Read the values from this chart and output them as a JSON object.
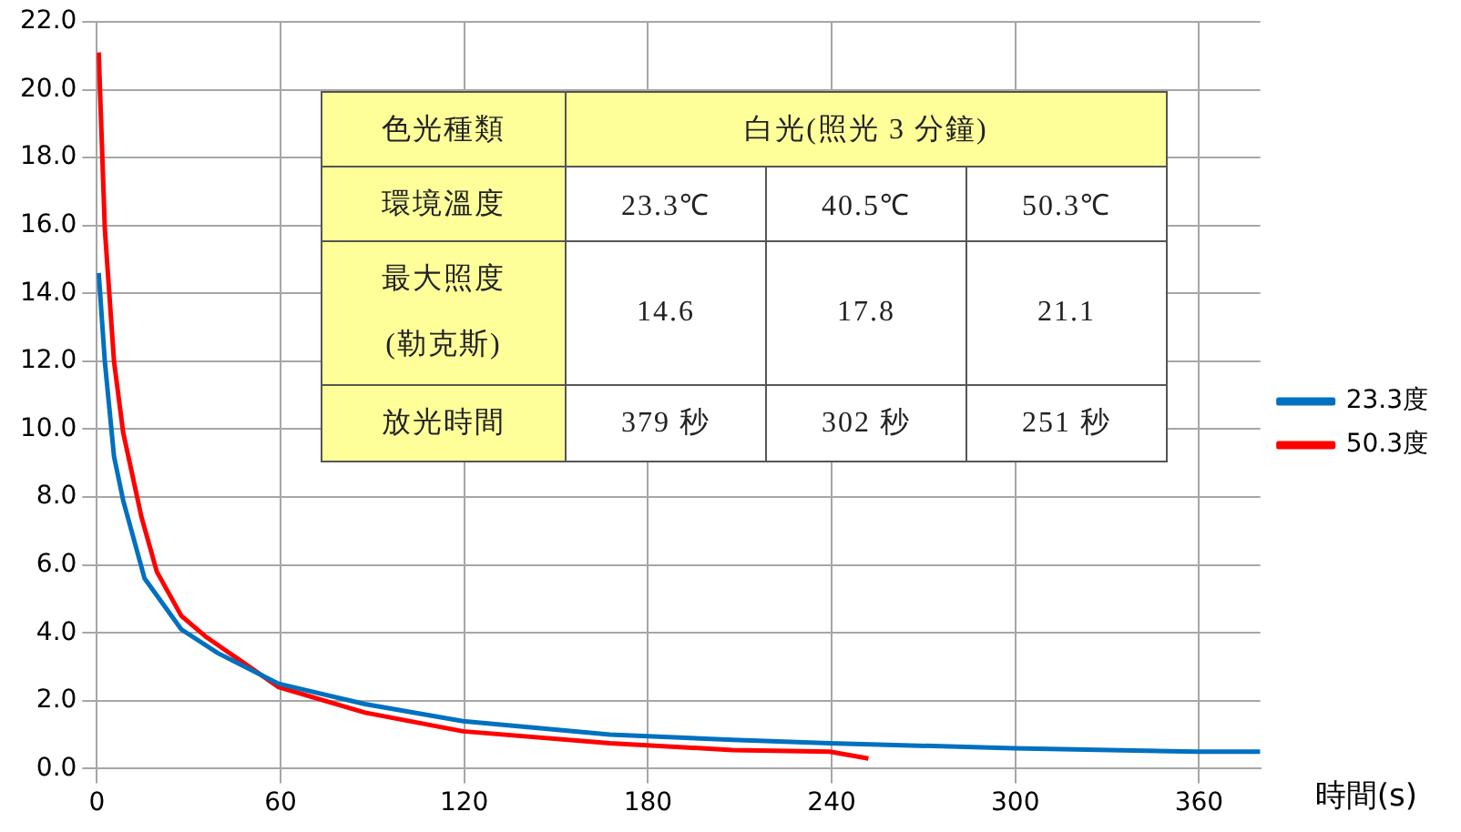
{
  "chart_data": {
    "type": "line",
    "xlabel": "時間(s)",
    "xlim": [
      0,
      380
    ],
    "xticks": [
      0,
      60,
      120,
      180,
      240,
      300,
      360
    ],
    "ylim": [
      0,
      22
    ],
    "yticks": [
      {
        "value": 0,
        "label": "0.0"
      },
      {
        "value": 2,
        "label": "2.0"
      },
      {
        "value": 4,
        "label": "4.0"
      },
      {
        "value": 6,
        "label": "6.0"
      },
      {
        "value": 8,
        "label": "8.0"
      },
      {
        "value": 10,
        "label": "10.0"
      },
      {
        "value": 12,
        "label": "12.0"
      },
      {
        "value": 14,
        "label": "14.0"
      },
      {
        "value": 16,
        "label": "16.0"
      },
      {
        "value": 18,
        "label": "18.0"
      },
      {
        "value": 20,
        "label": "20.0"
      },
      {
        "value": 22,
        "label": "22.0"
      }
    ],
    "grid": true,
    "legend": "right",
    "series": [
      {
        "name": "23.3度",
        "color": "#0070c0",
        "x": [
          0.6,
          2.6,
          5.6,
          8.6,
          15.6,
          27.6,
          39.6,
          59.4,
          87.6,
          119.6,
          167.6,
          207.6,
          239.4,
          299.4,
          359.4,
          380
        ],
        "values": [
          14.6,
          12.0,
          9.2,
          7.9,
          5.6,
          4.1,
          3.4,
          2.5,
          1.9,
          1.4,
          1.0,
          0.85,
          0.75,
          0.6,
          0.5,
          0.5
        ]
      },
      {
        "name": "50.3度",
        "color": "#ff0000",
        "x": [
          0.6,
          2.6,
          5.6,
          8.6,
          14.6,
          19.6,
          27.6,
          35.4,
          59.4,
          87.6,
          119.6,
          167.6,
          207.6,
          239.4,
          252
        ],
        "values": [
          21.1,
          15.9,
          12.0,
          9.9,
          7.4,
          5.8,
          4.5,
          3.9,
          2.4,
          1.65,
          1.1,
          0.75,
          0.55,
          0.5,
          0.3
        ]
      }
    ],
    "annotations": [
      "色光種類",
      "白光(照光 3 分鐘)",
      "環境溫度",
      "23.3℃",
      "40.5℃",
      "50.3℃",
      "最大照度 (勒克斯)",
      "14.6",
      "17.8",
      "21.1",
      "放光時間",
      "379 秒",
      "302 秒",
      "251 秒"
    ]
  }
}
